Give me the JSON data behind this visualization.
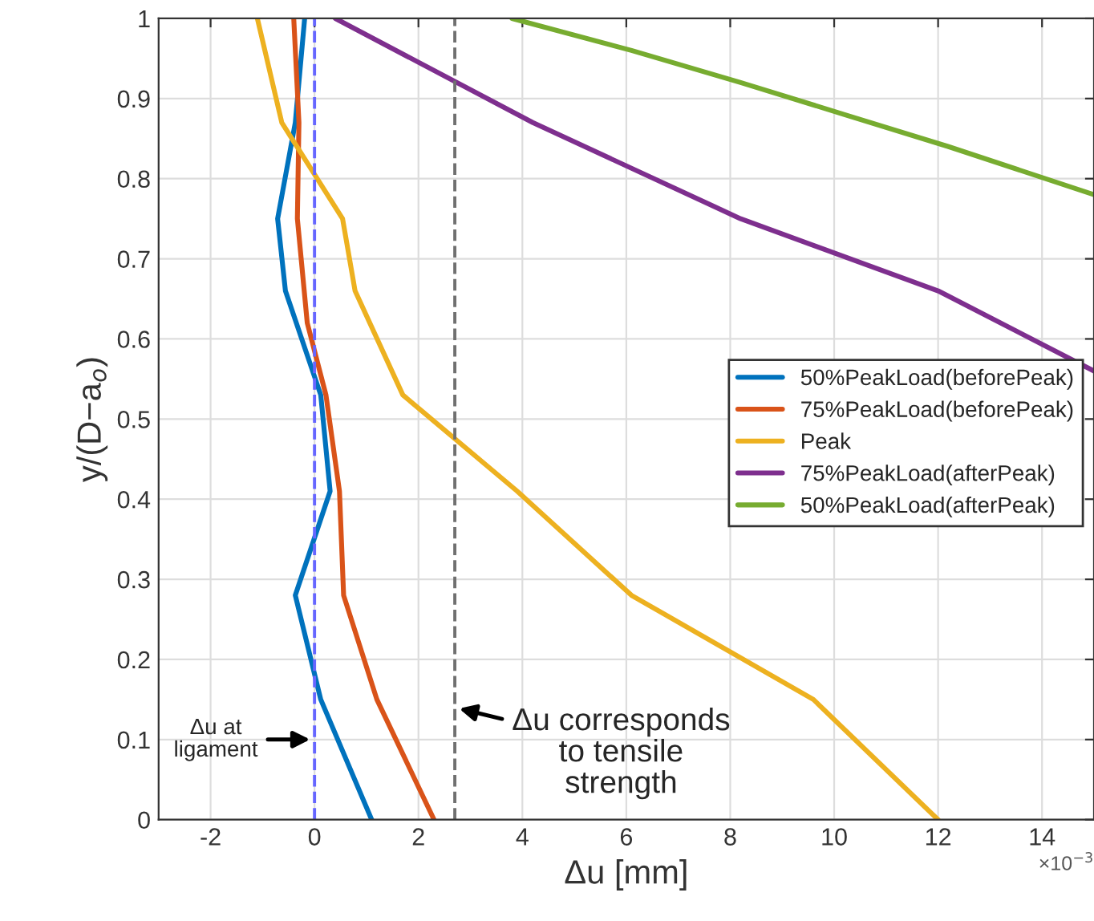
{
  "chart_data": {
    "type": "line",
    "xlabel": "Δu [mm]",
    "ylabel": "y/(D−a$_{o}$)",
    "xlim": [
      -3,
      15
    ],
    "xticks": [
      -2,
      0,
      2,
      4,
      6,
      8,
      10,
      12,
      14
    ],
    "ylim": [
      0,
      1
    ],
    "yticks": [
      0,
      0.1,
      0.2,
      0.3,
      0.4,
      0.5,
      0.6,
      0.7,
      0.8,
      0.9,
      1
    ],
    "grid": true,
    "legend": "right",
    "line_style": "solid",
    "marker": "none",
    "series": [
      {
        "name": "50%PeakLoad(beforePeak)",
        "color": "#0072bd",
        "x": [
          1.1,
          0.12,
          -0.37,
          0.3,
          0.12,
          -0.56,
          -0.71,
          -0.37,
          -0.19
        ],
        "values": [
          0,
          0.15,
          0.28,
          0.41,
          0.53,
          0.66,
          0.75,
          0.87,
          1
        ]
      },
      {
        "name": "75%PeakLoad(beforePeak)",
        "color": "#d95319",
        "x": [
          2.3,
          1.2,
          0.56,
          0.48,
          0.22,
          -0.14,
          -0.33,
          -0.3,
          -0.4
        ],
        "values": [
          0,
          0.15,
          0.28,
          0.41,
          0.53,
          0.62,
          0.75,
          0.87,
          1
        ]
      },
      {
        "name": "Peak",
        "color": "#edb120",
        "x": [
          12.0,
          9.6,
          6.1,
          3.9,
          1.7,
          0.78,
          0.54,
          -0.63,
          -1.1
        ],
        "values": [
          0,
          0.15,
          0.28,
          0.41,
          0.53,
          0.66,
          0.75,
          0.87,
          1
        ]
      },
      {
        "name": "75%PeakLoad(afterPeak)",
        "color": "#7e2f8e",
        "x": [
          0.4,
          4.2,
          8.2,
          12.0,
          15.0
        ],
        "values": [
          1,
          0.87,
          0.75,
          0.66,
          0.56
        ]
      },
      {
        "name": "50%PeakLoad(afterPeak)",
        "color": "#77ac30",
        "x": [
          3.8,
          6.1,
          8.2,
          10.2,
          12.2,
          15.0
        ],
        "values": [
          1,
          0.96,
          0.92,
          0.88,
          0.84,
          0.78
        ]
      }
    ],
    "ref_lines": [
      {
        "axis": "x",
        "value": 0,
        "color": "#6666ff",
        "line_style": "dashed"
      },
      {
        "axis": "x",
        "value": 2.7,
        "color": "#707070",
        "line_style": "dashed"
      }
    ],
    "annotations": [
      {
        "text": "Δu at\nligament",
        "x": 0,
        "y": 0.1
      },
      {
        "text": "Δu corresponds\nto tensile\nstrength",
        "x": 2.7,
        "y": 0.14
      },
      "×10$^{−3}$"
    ]
  }
}
